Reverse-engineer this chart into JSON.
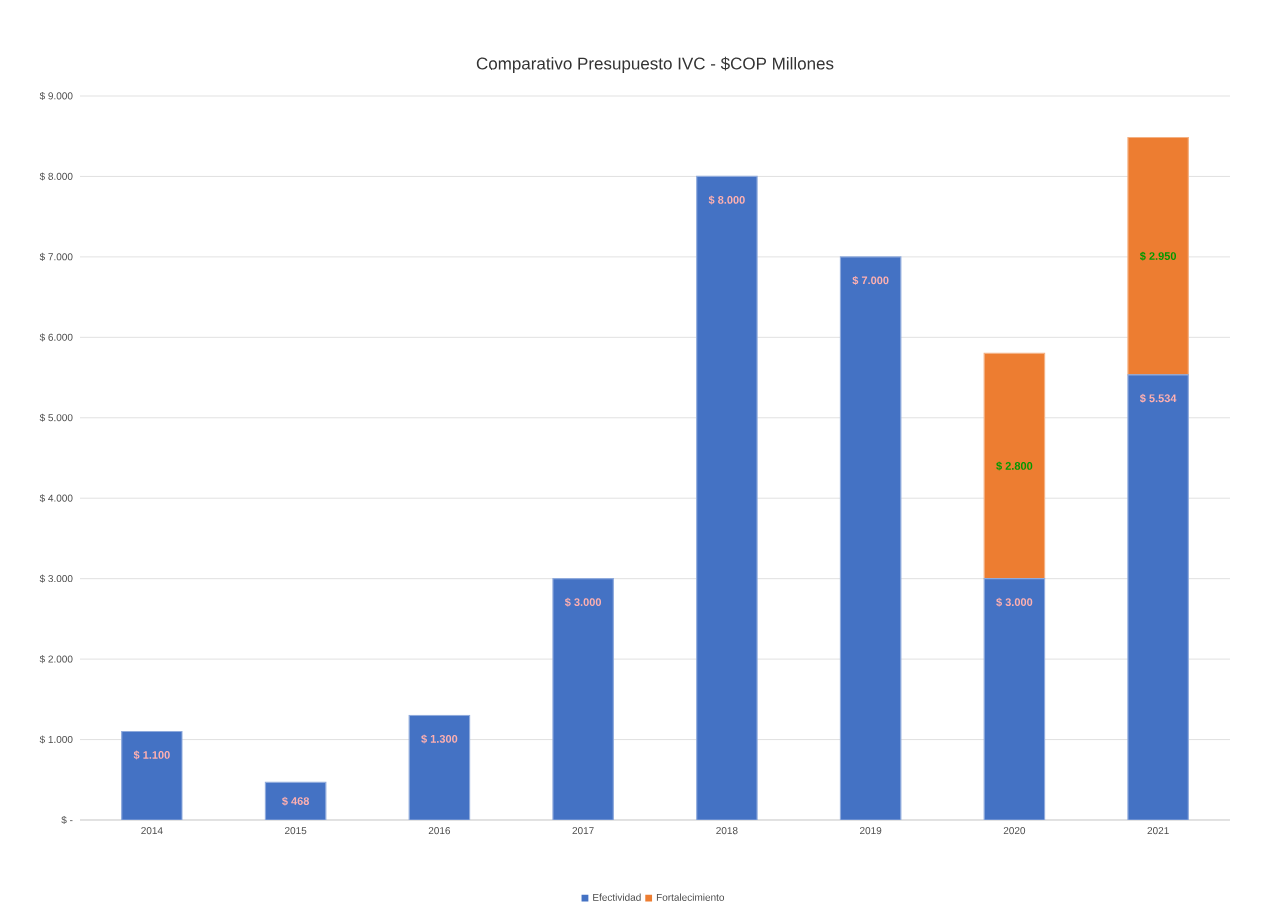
{
  "chart_data": {
    "type": "bar",
    "title": "Comparativo Presupuesto IVC - $COP Millones",
    "stacked": true,
    "grid": "y",
    "legend": "bottom",
    "categories": [
      "2014",
      "2015",
      "2016",
      "2017",
      "2018",
      "2019",
      "2020",
      "2021"
    ],
    "series": [
      {
        "name": "Efectividad",
        "color": "#4472c4",
        "values": [
          1100,
          468,
          1300,
          3000,
          8000,
          7000,
          3000,
          5534
        ],
        "value_labels": [
          "$ 1.100",
          "$ 468",
          "$ 1.300",
          "$ 3.000",
          "$ 8.000",
          "$ 7.000",
          "$ 3.000",
          "$ 5.534"
        ]
      },
      {
        "name": "Fortalecimiento",
        "color": "#ed7d31",
        "values": [
          null,
          null,
          null,
          null,
          null,
          null,
          2800,
          2950
        ],
        "value_labels": [
          null,
          null,
          null,
          null,
          null,
          null,
          "$ 2.800",
          "$ 2.950"
        ]
      }
    ],
    "ylim": [
      0,
      9000
    ],
    "yticks": [
      {
        "value": 0,
        "label": "$ -"
      },
      {
        "value": 1000,
        "label": "$ 1.000"
      },
      {
        "value": 2000,
        "label": "$ 2.000"
      },
      {
        "value": 3000,
        "label": "$ 3.000"
      },
      {
        "value": 4000,
        "label": "$ 4.000"
      },
      {
        "value": 5000,
        "label": "$ 5.000"
      },
      {
        "value": 6000,
        "label": "$ 6.000"
      },
      {
        "value": 7000,
        "label": "$ 7.000"
      },
      {
        "value": 8000,
        "label": "$ 8.000"
      },
      {
        "value": 9000,
        "label": "$ 9.000"
      }
    ]
  }
}
